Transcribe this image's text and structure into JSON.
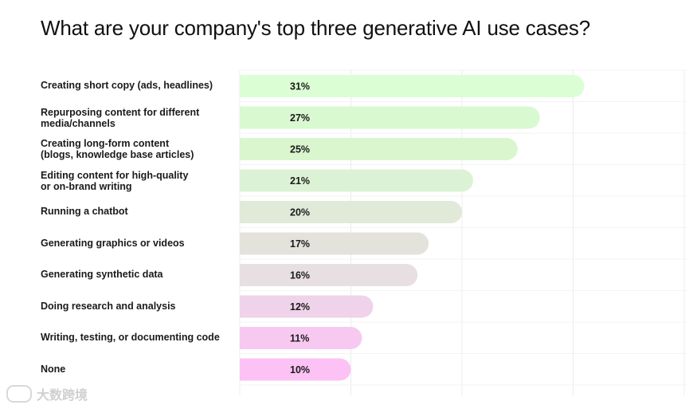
{
  "title": "What are your company's top three generative AI use cases?",
  "watermark": "大数跨境",
  "chart_data": {
    "type": "bar",
    "orientation": "horizontal",
    "title": "What are your company's top three generative AI use cases?",
    "xlabel": "",
    "ylabel": "",
    "xlim": [
      0,
      40
    ],
    "grid": true,
    "value_suffix": "%",
    "categories": [
      "Creating short copy (ads, headlines)",
      "Repurposing content for different\nmedia/channels",
      "Creating long-form content\n(blogs, knowledge base articles)",
      "Editing content for high-quality\nor on-brand writing",
      "Running a chatbot",
      "Generating graphics or videos",
      "Generating synthetic data",
      "Doing research and analysis",
      "Writing, testing, or documenting code",
      "None"
    ],
    "values": [
      31,
      27,
      25,
      21,
      20,
      17,
      16,
      12,
      11,
      10
    ],
    "data_labels": [
      "31%",
      "27%",
      "25%",
      "21%",
      "20%",
      "17%",
      "16%",
      "12%",
      "11%",
      "10%"
    ],
    "colors": [
      "#dbfed4",
      "#d9f9d0",
      "#d9f6cf",
      "#dcf2d5",
      "#e1e9d8",
      "#e3e3dc",
      "#e8dfe3",
      "#efd3ea",
      "#f7c9f1",
      "#fdc2f5"
    ]
  }
}
